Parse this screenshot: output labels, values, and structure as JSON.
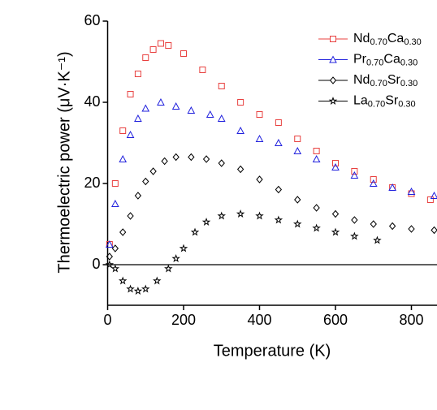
{
  "chart_data": {
    "type": "scatter",
    "xlabel": "Temperature (K)",
    "ylabel": "Thermoelectric power (μV·K⁻¹)",
    "xlim": [
      0,
      870
    ],
    "ylim": [
      -10,
      60
    ],
    "xticks": [
      0,
      200,
      400,
      600,
      800
    ],
    "yticks": [
      0,
      20,
      40,
      60
    ],
    "zero_line": true,
    "legend": "upper right",
    "series": [
      {
        "name": "Nd0.70Ca0.30",
        "color": "#e8403f",
        "marker": "square",
        "x": [
          5,
          20,
          40,
          60,
          80,
          100,
          120,
          140,
          160,
          200,
          250,
          300,
          350,
          400,
          450,
          500,
          550,
          600,
          650,
          700,
          750,
          800,
          850
        ],
        "values": [
          5,
          20,
          33,
          42,
          47,
          51,
          53,
          54.5,
          54,
          52,
          48,
          44,
          40,
          37,
          35,
          31,
          28,
          25,
          23,
          21,
          19,
          17.5,
          16
        ]
      },
      {
        "name": "Pr0.70Ca0.30",
        "color": "#2020dd",
        "marker": "triangle",
        "x": [
          5,
          20,
          40,
          60,
          80,
          100,
          140,
          180,
          220,
          270,
          300,
          350,
          400,
          450,
          500,
          550,
          600,
          650,
          700,
          750,
          800,
          860
        ],
        "values": [
          5,
          15,
          26,
          32,
          36,
          38.5,
          40,
          39,
          38,
          37,
          36,
          33,
          31,
          30,
          28,
          26,
          24,
          22,
          20,
          19,
          18,
          17
        ]
      },
      {
        "name": "Nd0.70Sr0.30",
        "color": "#000000",
        "marker": "diamond",
        "x": [
          5,
          20,
          40,
          60,
          80,
          100,
          120,
          150,
          180,
          220,
          260,
          300,
          350,
          400,
          450,
          500,
          550,
          600,
          650,
          700,
          750,
          800,
          860
        ],
        "values": [
          2,
          4,
          8,
          12,
          17,
          20.5,
          23,
          25.5,
          26.5,
          26.5,
          26,
          25,
          23.5,
          21,
          18.5,
          16,
          14,
          12.5,
          11,
          10,
          9.5,
          8.8,
          8.5
        ]
      },
      {
        "name": "La0.70Sr0.30",
        "color": "#000000",
        "marker": "star",
        "x": [
          5,
          20,
          40,
          60,
          80,
          100,
          130,
          160,
          180,
          200,
          230,
          260,
          300,
          350,
          400,
          450,
          500,
          550,
          600,
          650,
          710
        ],
        "values": [
          0,
          -1,
          -4,
          -6,
          -6.5,
          -6,
          -4,
          -1,
          1.5,
          4,
          8,
          10.5,
          12,
          12.5,
          12,
          11,
          10,
          9,
          8,
          7,
          6
        ]
      }
    ]
  }
}
